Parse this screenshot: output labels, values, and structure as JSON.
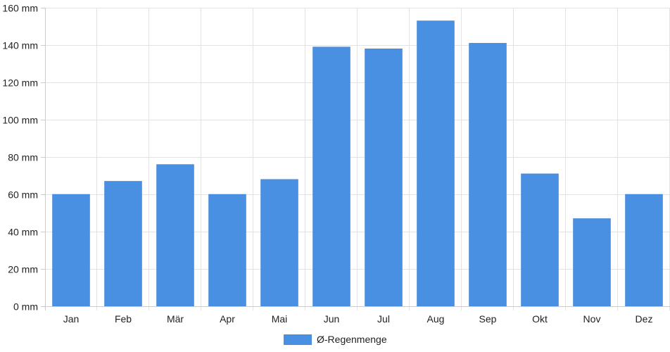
{
  "chart_data": {
    "type": "bar",
    "categories": [
      "Jan",
      "Feb",
      "Mär",
      "Apr",
      "Mai",
      "Jun",
      "Jul",
      "Aug",
      "Sep",
      "Okt",
      "Nov",
      "Dez"
    ],
    "series": [
      {
        "name": "Ø-Regenmenge",
        "color": "#4a90e2",
        "values": [
          60,
          67,
          76,
          60,
          68,
          139,
          138,
          153,
          141,
          71,
          47,
          60
        ]
      }
    ],
    "ylim": [
      0,
      160
    ],
    "yticks": [
      "0 mm",
      "20 mm",
      "40 mm",
      "60 mm",
      "80 mm",
      "100 mm",
      "120 mm",
      "140 mm",
      "160 mm"
    ],
    "ytick_values": [
      0,
      20,
      40,
      60,
      80,
      100,
      120,
      140,
      160
    ],
    "grid": true,
    "legend_position": "bottom-center"
  }
}
